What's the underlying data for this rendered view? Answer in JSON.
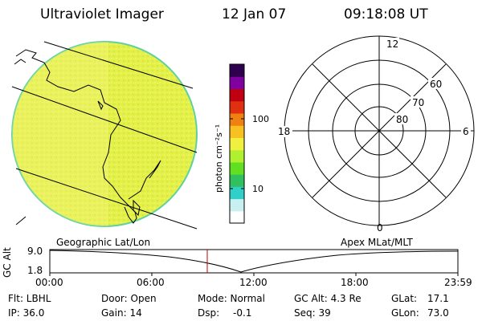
{
  "header": {
    "title": "Ultraviolet Imager",
    "date": "12 Jan 07",
    "time": "09:18:08 UT"
  },
  "colorbar": {
    "label": "photon cm⁻²s⁻¹",
    "scale": "log",
    "ticks": [
      "100",
      "10"
    ],
    "tick_values": [
      100,
      10
    ],
    "range": [
      3,
      600
    ],
    "colors": [
      "#ffffff",
      "#c8f0f0",
      "#30d0c8",
      "#30c060",
      "#60e020",
      "#b0f030",
      "#f0f040",
      "#f8c020",
      "#f08010",
      "#e03010",
      "#c00010",
      "#8000a0",
      "#300050"
    ]
  },
  "image_panel": {
    "projection_label": "Geographic Lat/Lon",
    "fill_colors": [
      "#e6f24a",
      "#d8ee3c",
      "#f2f45a",
      "#c8ea36"
    ]
  },
  "polar_plot": {
    "projection_label": "Apex MLat/MLT",
    "mlt_labels": [
      "12",
      "18",
      "6",
      "0"
    ],
    "mlat_labels": [
      "60",
      "70",
      "80"
    ],
    "mlat_values": [
      60,
      70,
      80
    ]
  },
  "altitude_strip": {
    "axis_title": "GC Alt",
    "y_labels": [
      "9.0",
      "1.8"
    ],
    "x_labels": [
      "00:00",
      "06:00",
      "12:00",
      "18:00",
      "23:59"
    ],
    "marker_time": "09:18",
    "marker_color": "#c00000"
  },
  "status": {
    "filter": "Flt: LBHL",
    "ip": "IP: 36.0",
    "door": "Door: Open",
    "gain": "Gain: 14",
    "mode": "Mode: Normal",
    "dsp_label": "Dsp:",
    "dsp_value": "-0.1",
    "gc_alt": "GC Alt: 4.3 Re",
    "seq": "Seq: 39",
    "glat_label": "GLat:",
    "glat_value": "17.1",
    "glon_label": "GLon:",
    "glon_value": "73.0"
  }
}
